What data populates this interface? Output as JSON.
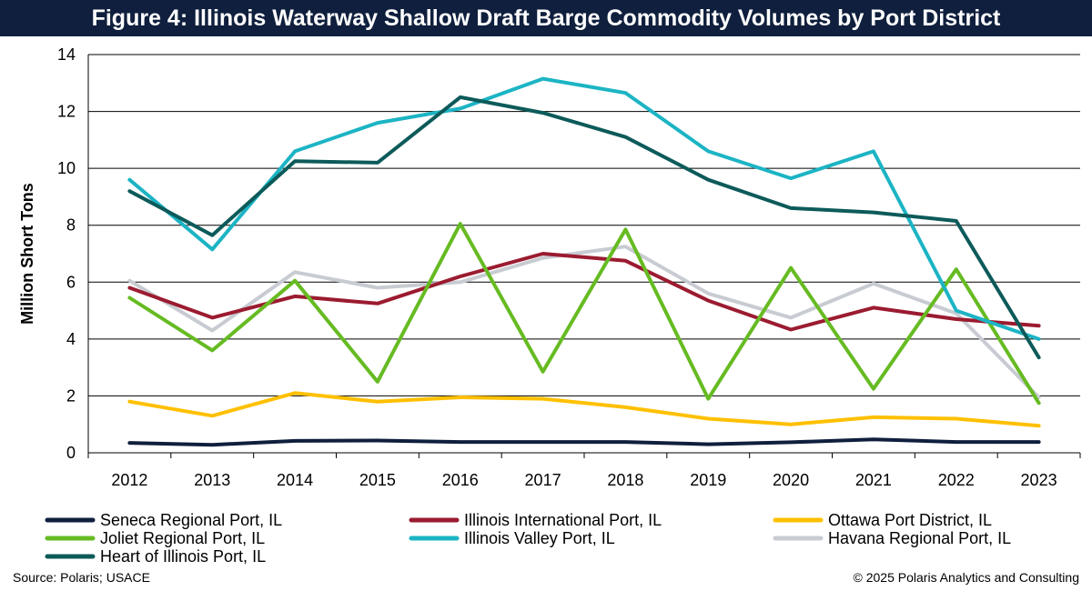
{
  "title": "Figure 4: Illinois Waterway Shallow Draft Barge Commodity Volumes by Port District",
  "footer": {
    "source": "Source: Polaris; USACE",
    "copyright": "© 2025 Polaris Analytics and Consulting"
  },
  "chart_data": {
    "type": "line",
    "title": "Figure 4: Illinois Waterway Shallow Draft Barge Commodity Volumes by Port District",
    "xlabel": "",
    "ylabel": "Million Short Tons",
    "ylim": [
      0,
      14
    ],
    "yticks": [
      0,
      2,
      4,
      6,
      8,
      10,
      12,
      14
    ],
    "grid": "horizontal",
    "legend_position": "bottom",
    "x": [
      "2012",
      "2013",
      "2014",
      "2015",
      "2016",
      "2017",
      "2018",
      "2019",
      "2020",
      "2021",
      "2022",
      "2023"
    ],
    "series": [
      {
        "name": "Seneca Regional Port, IL",
        "color": "#0f1f3d",
        "values": [
          0.35,
          0.28,
          0.42,
          0.43,
          0.38,
          0.38,
          0.38,
          0.3,
          0.37,
          0.47,
          0.38,
          0.38
        ]
      },
      {
        "name": "Illinois International Port, IL",
        "color": "#9b1b30",
        "values": [
          5.8,
          4.75,
          5.5,
          5.25,
          6.2,
          7.0,
          6.75,
          5.35,
          4.33,
          5.1,
          4.7,
          4.47
        ]
      },
      {
        "name": "Ottawa Port District, IL",
        "color": "#ffc000",
        "values": [
          1.8,
          1.3,
          2.1,
          1.8,
          1.95,
          1.9,
          1.6,
          1.2,
          1.0,
          1.25,
          1.2,
          0.95
        ]
      },
      {
        "name": "Joliet Regional Port, IL",
        "color": "#66bb22",
        "values": [
          5.45,
          3.6,
          6.05,
          2.5,
          8.05,
          2.85,
          7.85,
          1.9,
          6.5,
          2.25,
          6.45,
          1.75
        ]
      },
      {
        "name": "Illinois Valley Port, IL",
        "color": "#1cb4c4",
        "values": [
          9.6,
          7.15,
          10.6,
          11.6,
          12.1,
          13.15,
          12.65,
          10.6,
          9.65,
          10.6,
          5.0,
          4.0
        ]
      },
      {
        "name": "Havana Regional Port, IL",
        "color": "#c8ccd2",
        "values": [
          6.05,
          4.3,
          6.35,
          5.8,
          6.0,
          6.85,
          7.25,
          5.6,
          4.75,
          5.95,
          4.9,
          1.95
        ]
      },
      {
        "name": "Heart of Illinois Port, IL",
        "color": "#0d5a5a",
        "values": [
          9.2,
          7.65,
          10.25,
          10.2,
          12.5,
          11.95,
          11.1,
          9.6,
          8.6,
          8.45,
          8.15,
          3.35
        ]
      }
    ],
    "draw_order": [
      "Seneca Regional Port, IL",
      "Ottawa Port District, IL",
      "Havana Regional Port, IL",
      "Illinois International Port, IL",
      "Joliet Regional Port, IL",
      "Illinois Valley Port, IL",
      "Heart of Illinois Port, IL"
    ]
  }
}
